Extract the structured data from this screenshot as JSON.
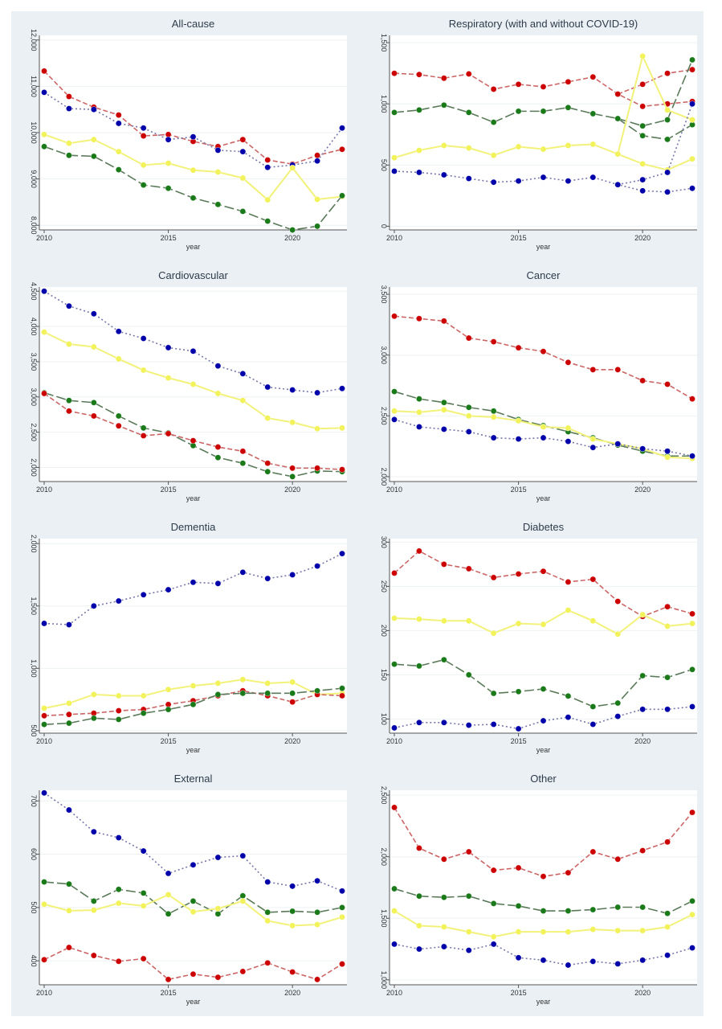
{
  "chart_data": [
    {
      "type": "line",
      "title": "All-cause",
      "xlabel": "year",
      "ylabel": "",
      "x": [
        2010,
        2011,
        2012,
        2013,
        2014,
        2015,
        2016,
        2017,
        2018,
        2019,
        2020,
        2021,
        2022
      ],
      "xticks": [
        2010,
        2015,
        2020
      ],
      "ylim": [
        7900,
        12100
      ],
      "yticks": [
        8000,
        9000,
        10000,
        11000,
        12000
      ],
      "ytick_labels": [
        "8,000",
        "9,000",
        "10,000",
        "11,000",
        "12,000"
      ],
      "grid": true,
      "series": [
        {
          "name": "red",
          "color": "#cc0000",
          "dash": "dashed",
          "values": [
            11330,
            10780,
            10550,
            10380,
            9930,
            9960,
            9810,
            9700,
            9850,
            9410,
            9320,
            9510,
            9640
          ]
        },
        {
          "name": "blue",
          "color": "#0000aa",
          "dash": "dotted",
          "values": [
            10870,
            10520,
            10500,
            10200,
            10100,
            9850,
            9910,
            9620,
            9590,
            9250,
            9300,
            9390,
            10100
          ]
        },
        {
          "name": "yellow",
          "color": "#f2f25a",
          "dash": "solid",
          "values": [
            9960,
            9770,
            9850,
            9590,
            9300,
            9340,
            9190,
            9150,
            9020,
            8550,
            9240,
            8560,
            8620
          ]
        },
        {
          "name": "green",
          "color": "#1a7a1a",
          "dash": "longdash",
          "values": [
            9700,
            9510,
            9490,
            9200,
            8870,
            8800,
            8590,
            8450,
            8300,
            8090,
            7900,
            7980,
            8640
          ]
        }
      ]
    },
    {
      "type": "line",
      "title": "Respiratory (with and without COVID-19)",
      "xlabel": "year",
      "ylabel": "",
      "x": [
        2010,
        2011,
        2012,
        2013,
        2014,
        2015,
        2016,
        2017,
        2018,
        2019,
        2020,
        2021,
        2022
      ],
      "xticks": [
        2010,
        2015,
        2020
      ],
      "ylim": [
        -30,
        1560
      ],
      "yticks": [
        0,
        500,
        1000,
        1500
      ],
      "ytick_labels": [
        "0",
        "500",
        "1,000",
        "1,500"
      ],
      "grid": true,
      "series": [
        {
          "name": "red",
          "color": "#cc0000",
          "dash": "dashed",
          "values": [
            1250,
            1240,
            1210,
            1245,
            1120,
            1160,
            1140,
            1180,
            1220,
            1080,
            980,
            1000,
            1020
          ]
        },
        {
          "name": "red (with COVID-19)",
          "color": "#cc0000",
          "dash": "dashed",
          "start_index": 9,
          "values": [
            1080,
            1160,
            1250,
            1280
          ]
        },
        {
          "name": "green",
          "color": "#1a7a1a",
          "dash": "longdash",
          "values": [
            930,
            950,
            990,
            930,
            850,
            940,
            940,
            970,
            920,
            880,
            740,
            710,
            830
          ]
        },
        {
          "name": "green (with COVID-19)",
          "color": "#1a7a1a",
          "dash": "longdash",
          "start_index": 9,
          "values": [
            880,
            820,
            870,
            1360
          ]
        },
        {
          "name": "yellow",
          "color": "#f2f25a",
          "dash": "solid",
          "values": [
            560,
            620,
            660,
            640,
            580,
            650,
            630,
            660,
            670,
            590,
            510,
            460,
            550
          ]
        },
        {
          "name": "yellow (with COVID-19)",
          "color": "#f2f25a",
          "dash": "solid",
          "start_index": 9,
          "values": [
            590,
            1390,
            950,
            870
          ]
        },
        {
          "name": "blue",
          "color": "#0000aa",
          "dash": "dotted",
          "values": [
            450,
            440,
            420,
            390,
            360,
            370,
            400,
            370,
            400,
            340,
            290,
            280,
            310
          ]
        },
        {
          "name": "blue (with COVID-19)",
          "color": "#0000aa",
          "dash": "dotted",
          "start_index": 9,
          "values": [
            340,
            380,
            440,
            1000
          ]
        }
      ]
    },
    {
      "type": "line",
      "title": "Cardiovascular",
      "xlabel": "year",
      "ylabel": "",
      "x": [
        2010,
        2011,
        2012,
        2013,
        2014,
        2015,
        2016,
        2017,
        2018,
        2019,
        2020,
        2021,
        2022
      ],
      "xticks": [
        2010,
        2015,
        2020
      ],
      "ylim": [
        1800,
        4560
      ],
      "yticks": [
        2000,
        2500,
        3000,
        3500,
        4000,
        4500
      ],
      "ytick_labels": [
        "2,000",
        "2,500",
        "3,000",
        "3,500",
        "4,000",
        "4,500"
      ],
      "grid": true,
      "series": [
        {
          "name": "blue",
          "color": "#0000aa",
          "dash": "dotted",
          "values": [
            4500,
            4290,
            4180,
            3930,
            3830,
            3700,
            3650,
            3440,
            3330,
            3140,
            3100,
            3060,
            3120
          ]
        },
        {
          "name": "yellow",
          "color": "#f2f25a",
          "dash": "solid",
          "values": [
            3920,
            3750,
            3710,
            3540,
            3380,
            3270,
            3180,
            3050,
            2950,
            2700,
            2640,
            2550,
            2560
          ]
        },
        {
          "name": "green",
          "color": "#1a7a1a",
          "dash": "longdash",
          "values": [
            3060,
            2950,
            2920,
            2730,
            2560,
            2490,
            2310,
            2140,
            2060,
            1940,
            1870,
            1950,
            1940
          ]
        },
        {
          "name": "red",
          "color": "#cc0000",
          "dash": "dashed",
          "values": [
            3050,
            2800,
            2730,
            2590,
            2450,
            2480,
            2380,
            2290,
            2230,
            2060,
            1990,
            1990,
            1970
          ]
        }
      ]
    },
    {
      "type": "line",
      "title": "Cancer",
      "xlabel": "year",
      "ylabel": "",
      "x": [
        2010,
        2011,
        2012,
        2013,
        2014,
        2015,
        2016,
        2017,
        2018,
        2019,
        2020,
        2021,
        2022
      ],
      "xticks": [
        2010,
        2015,
        2020
      ],
      "ylim": [
        1960,
        3560
      ],
      "yticks": [
        2000,
        2500,
        3000,
        3500
      ],
      "ytick_labels": [
        "2,000",
        "2,500",
        "3,000",
        "3,500"
      ],
      "grid": true,
      "series": [
        {
          "name": "red",
          "color": "#cc0000",
          "dash": "dashed",
          "values": [
            3320,
            3300,
            3280,
            3140,
            3110,
            3060,
            3030,
            2940,
            2880,
            2880,
            2790,
            2760,
            2640
          ]
        },
        {
          "name": "green",
          "color": "#1a7a1a",
          "dash": "longdash",
          "values": [
            2700,
            2640,
            2610,
            2570,
            2540,
            2470,
            2420,
            2370,
            2320,
            2260,
            2210,
            2170,
            2170
          ]
        },
        {
          "name": "yellow",
          "color": "#f2f25a",
          "dash": "solid",
          "values": [
            2540,
            2530,
            2550,
            2500,
            2490,
            2460,
            2410,
            2400,
            2310,
            2270,
            2230,
            2160,
            2150
          ]
        },
        {
          "name": "blue",
          "color": "#0000aa",
          "dash": "dotted",
          "values": [
            2470,
            2410,
            2390,
            2370,
            2320,
            2310,
            2320,
            2290,
            2240,
            2270,
            2230,
            2210,
            2170
          ]
        }
      ]
    },
    {
      "type": "line",
      "title": "Dementia",
      "xlabel": "year",
      "ylabel": "",
      "x": [
        2010,
        2011,
        2012,
        2013,
        2014,
        2015,
        2016,
        2017,
        2018,
        2019,
        2020,
        2021,
        2022
      ],
      "xticks": [
        2010,
        2015,
        2020
      ],
      "ylim": [
        480,
        2040
      ],
      "yticks": [
        500,
        1000,
        1500,
        2000
      ],
      "ytick_labels": [
        "500",
        "1,000",
        "1,500",
        "2,000"
      ],
      "grid": true,
      "series": [
        {
          "name": "blue",
          "color": "#0000aa",
          "dash": "dotted",
          "values": [
            1360,
            1350,
            1500,
            1540,
            1590,
            1630,
            1690,
            1680,
            1770,
            1720,
            1750,
            1820,
            1920
          ]
        },
        {
          "name": "yellow",
          "color": "#f2f25a",
          "dash": "solid",
          "values": [
            680,
            720,
            790,
            780,
            780,
            830,
            860,
            880,
            910,
            880,
            890,
            790,
            800
          ]
        },
        {
          "name": "red",
          "color": "#cc0000",
          "dash": "dashed",
          "values": [
            620,
            630,
            640,
            660,
            670,
            710,
            740,
            780,
            820,
            780,
            730,
            790,
            780
          ]
        },
        {
          "name": "green",
          "color": "#1a7a1a",
          "dash": "longdash",
          "values": [
            550,
            560,
            600,
            590,
            640,
            670,
            710,
            790,
            800,
            800,
            800,
            820,
            840
          ]
        }
      ]
    },
    {
      "type": "line",
      "title": "Diabetes",
      "xlabel": "year",
      "ylabel": "",
      "x": [
        2010,
        2011,
        2012,
        2013,
        2014,
        2015,
        2016,
        2017,
        2018,
        2019,
        2020,
        2021,
        2022
      ],
      "xticks": [
        2010,
        2015,
        2020
      ],
      "ylim": [
        84,
        304
      ],
      "yticks": [
        100,
        150,
        200,
        250,
        300
      ],
      "ytick_labels": [
        "100",
        "150",
        "200",
        "250",
        "300"
      ],
      "grid": true,
      "series": [
        {
          "name": "red",
          "color": "#cc0000",
          "dash": "dashed",
          "values": [
            265,
            290,
            275,
            270,
            260,
            264,
            267,
            255,
            258,
            233,
            216,
            227,
            219
          ]
        },
        {
          "name": "yellow",
          "color": "#f2f25a",
          "dash": "solid",
          "values": [
            214,
            213,
            211,
            211,
            197,
            208,
            207,
            223,
            211,
            196,
            218,
            205,
            208
          ]
        },
        {
          "name": "green",
          "color": "#1a7a1a",
          "dash": "longdash",
          "values": [
            162,
            160,
            167,
            150,
            129,
            131,
            134,
            126,
            114,
            118,
            149,
            147,
            156
          ]
        },
        {
          "name": "blue",
          "color": "#0000aa",
          "dash": "dotted",
          "values": [
            90,
            96,
            96,
            93,
            94,
            89,
            98,
            102,
            94,
            103,
            111,
            111,
            114
          ]
        }
      ]
    },
    {
      "type": "line",
      "title": "External",
      "xlabel": "year",
      "ylabel": "",
      "x": [
        2010,
        2011,
        2012,
        2013,
        2014,
        2015,
        2016,
        2017,
        2018,
        2019,
        2020,
        2021,
        2022
      ],
      "xticks": [
        2010,
        2015,
        2020
      ],
      "ylim": [
        355,
        720
      ],
      "yticks": [
        400,
        500,
        600,
        700
      ],
      "ytick_labels": [
        "400",
        "500",
        "600",
        "700"
      ],
      "grid": true,
      "series": [
        {
          "name": "blue",
          "color": "#0000aa",
          "dash": "dotted",
          "values": [
            715,
            683,
            642,
            631,
            606,
            564,
            580,
            594,
            597,
            548,
            540,
            550,
            531
          ]
        },
        {
          "name": "green",
          "color": "#1a7a1a",
          "dash": "longdash",
          "values": [
            548,
            544,
            512,
            534,
            527,
            488,
            512,
            488,
            522,
            491,
            493,
            491,
            500
          ]
        },
        {
          "name": "yellow",
          "color": "#f2f25a",
          "dash": "solid",
          "values": [
            506,
            494,
            495,
            508,
            503,
            524,
            492,
            498,
            512,
            475,
            466,
            468,
            482
          ]
        },
        {
          "name": "red",
          "color": "#cc0000",
          "dash": "dashed",
          "values": [
            402,
            425,
            410,
            399,
            404,
            365,
            375,
            369,
            380,
            396,
            379,
            365,
            394
          ]
        }
      ]
    },
    {
      "type": "line",
      "title": "Other",
      "xlabel": "year",
      "ylabel": "",
      "x": [
        2010,
        2011,
        2012,
        2013,
        2014,
        2015,
        2016,
        2017,
        2018,
        2019,
        2020,
        2021,
        2022
      ],
      "xticks": [
        2010,
        2015,
        2020
      ],
      "ylim": [
        960,
        2540
      ],
      "yticks": [
        1000,
        1500,
        2000,
        2500
      ],
      "ytick_labels": [
        "1,000",
        "1,500",
        "2,000",
        "2,500"
      ],
      "grid": true,
      "series": [
        {
          "name": "red",
          "color": "#cc0000",
          "dash": "dashed",
          "values": [
            2400,
            2070,
            1980,
            2040,
            1890,
            1910,
            1840,
            1870,
            2040,
            1980,
            2050,
            2120,
            2360
          ]
        },
        {
          "name": "green",
          "color": "#1a7a1a",
          "dash": "longdash",
          "values": [
            1740,
            1680,
            1670,
            1680,
            1620,
            1600,
            1560,
            1560,
            1570,
            1590,
            1590,
            1540,
            1640
          ]
        },
        {
          "name": "yellow",
          "color": "#f2f25a",
          "dash": "solid",
          "values": [
            1560,
            1440,
            1430,
            1390,
            1350,
            1390,
            1390,
            1390,
            1410,
            1400,
            1400,
            1430,
            1530
          ]
        },
        {
          "name": "blue",
          "color": "#0000aa",
          "dash": "dotted",
          "values": [
            1290,
            1250,
            1270,
            1240,
            1290,
            1180,
            1160,
            1120,
            1150,
            1130,
            1160,
            1200,
            1260
          ]
        }
      ]
    }
  ]
}
